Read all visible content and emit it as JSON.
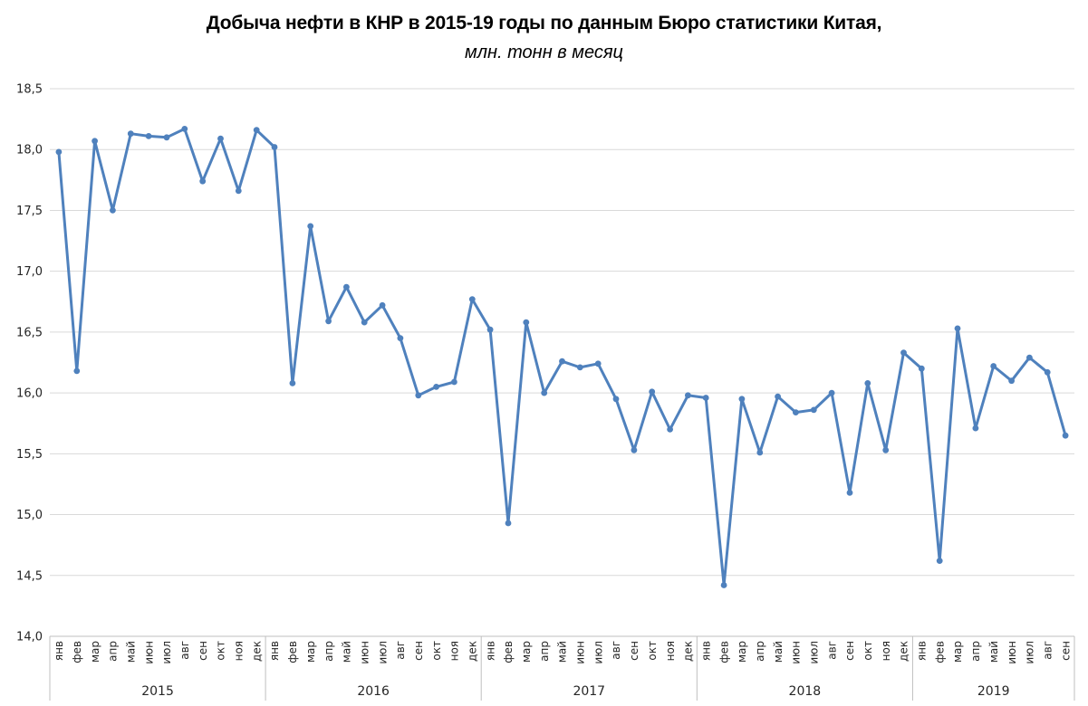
{
  "chart_data": {
    "type": "line",
    "title": "Добыча нефти в КНР в 2015-19 годы по данным Бюро статистики Китая,",
    "subtitle": "млн. тонн в месяц",
    "xlabel": "",
    "ylabel": "",
    "ylim": [
      14.0,
      18.5
    ],
    "ytick_step": 0.5,
    "y_tick_labels": [
      "14,0",
      "14,5",
      "15,0",
      "15,5",
      "16,0",
      "16,5",
      "17,0",
      "17,5",
      "18,0",
      "18,5"
    ],
    "grid": true,
    "legend_position": "none",
    "marker": "circle",
    "month_labels": [
      "янв",
      "фев",
      "мар",
      "апр",
      "май",
      "июн",
      "июл",
      "авг",
      "сен",
      "окт",
      "ноя",
      "дек"
    ],
    "series": [
      {
        "name": "Добыча нефти, млн. тонн в месяц",
        "groups": [
          {
            "year": "2015",
            "values": [
              17.98,
              16.18,
              18.07,
              17.5,
              18.13,
              18.11,
              18.1,
              18.17,
              17.74,
              18.09,
              17.66,
              18.16
            ]
          },
          {
            "year": "2016",
            "values": [
              18.02,
              16.08,
              17.37,
              16.59,
              16.87,
              16.58,
              16.72,
              16.45,
              15.98,
              16.05,
              16.09,
              16.77
            ]
          },
          {
            "year": "2017",
            "values": [
              16.52,
              14.93,
              16.58,
              16.0,
              16.26,
              16.21,
              16.24,
              15.95,
              15.53,
              16.01,
              15.7,
              15.98
            ]
          },
          {
            "year": "2018",
            "values": [
              15.96,
              14.42,
              15.95,
              15.51,
              15.97,
              15.84,
              15.86,
              16.0,
              15.18,
              16.08,
              15.53,
              16.33
            ]
          },
          {
            "year": "2019",
            "values": [
              16.2,
              14.62,
              16.53,
              15.71,
              16.22,
              16.1,
              16.29,
              16.17,
              15.65
            ]
          }
        ]
      }
    ],
    "colors": {
      "line": "#4F81BD",
      "marker": "#4F81BD",
      "gridline": "#D9D9D9",
      "axis_line": "#BFBFBF",
      "tick_text": "#262626",
      "title_text": "#000000"
    }
  }
}
